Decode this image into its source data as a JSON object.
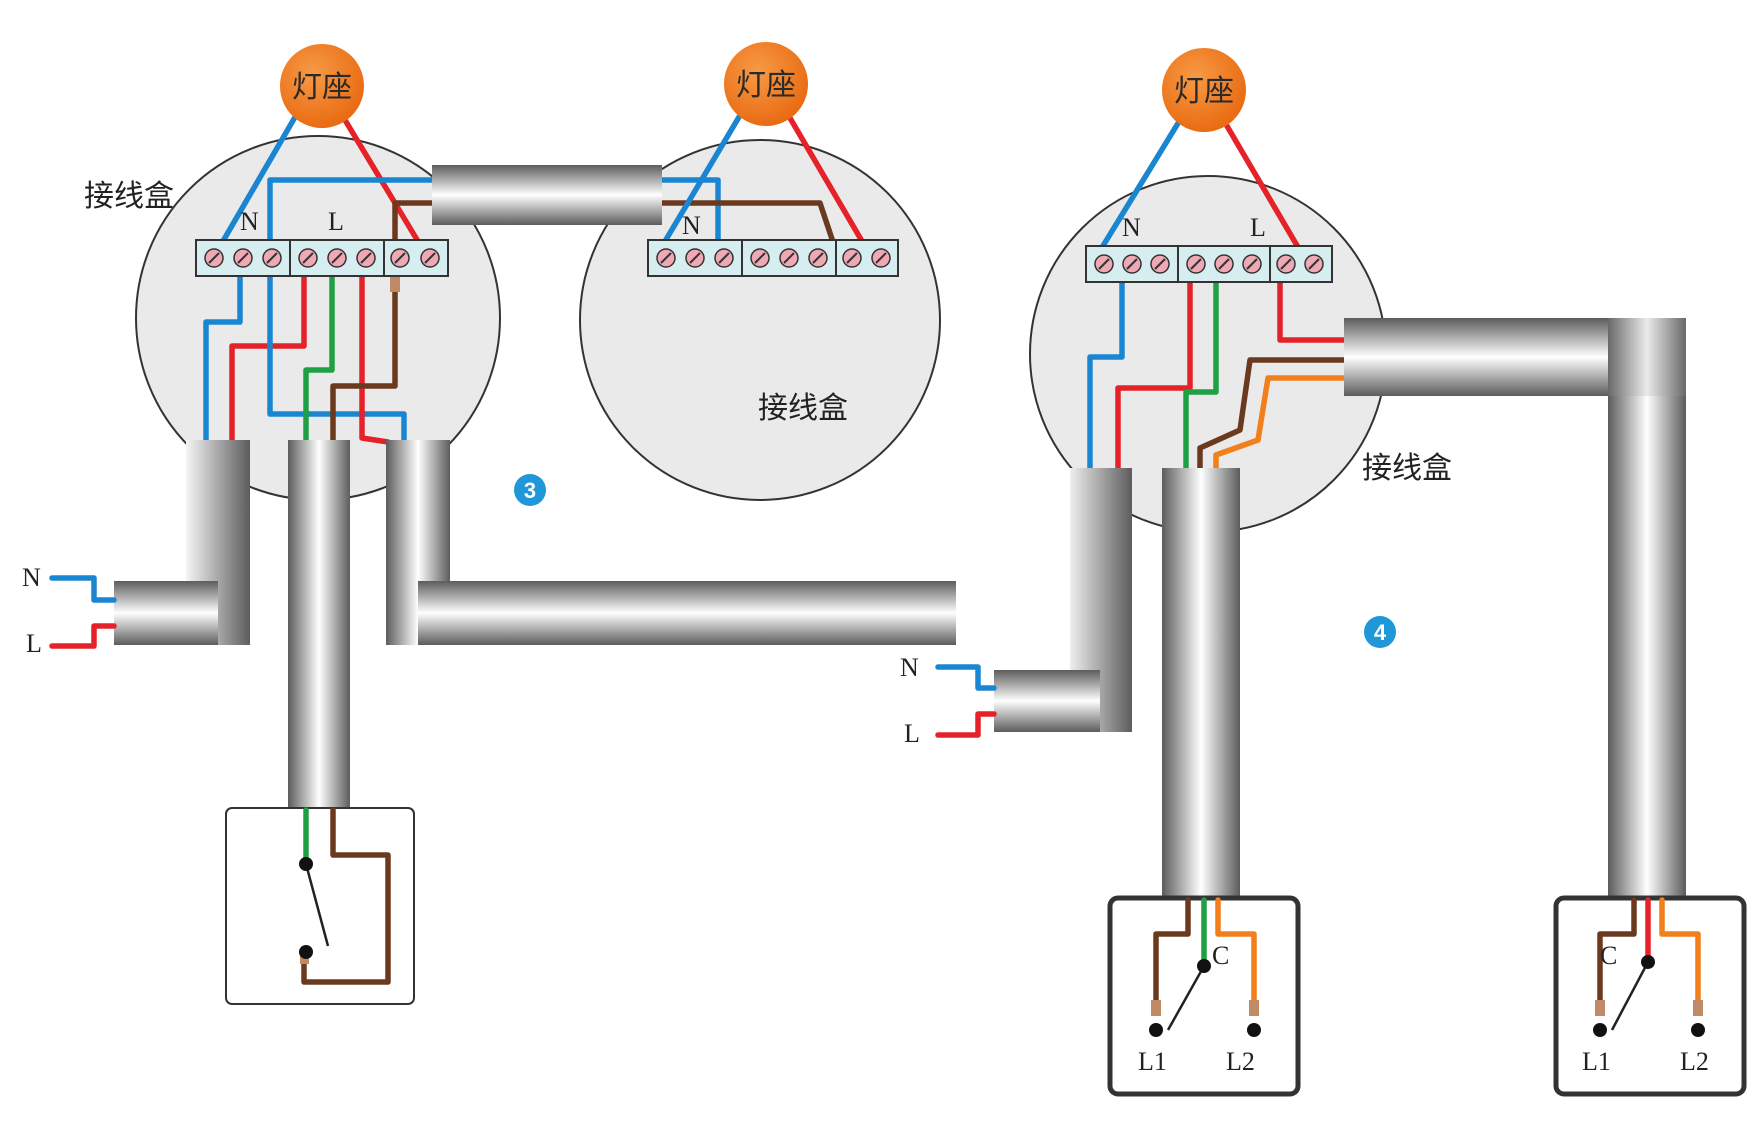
{
  "labels": {
    "lamp_holder": "灯座",
    "junction_box": "接线盒",
    "neutral": "N",
    "live": "L",
    "common": "C",
    "l1": "L1",
    "l2": "L2"
  },
  "steps": [
    "3",
    "4"
  ],
  "colors": {
    "neutral": "#1a86d1",
    "live": "#e52229",
    "switched": "#6b3a1e",
    "earth_green": "#1fa045",
    "traveller": "#f07f1c",
    "lamp": "#f07a1e",
    "box": "#eaeaea",
    "terminal": "#d6eef0",
    "step_badge": "#1f97d9"
  }
}
